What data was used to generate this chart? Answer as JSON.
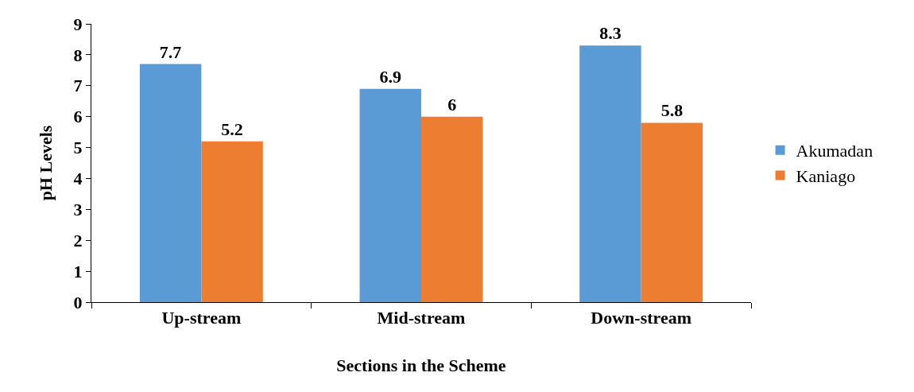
{
  "chart_data": {
    "type": "bar",
    "xlabel": "Sections in the Scheme",
    "ylabel": "pH Levels",
    "categories": [
      "Up-stream",
      "Mid-stream",
      "Down-stream"
    ],
    "series": [
      {
        "name": "Akumadan",
        "color": "#5b9bd5",
        "values": [
          7.7,
          6.9,
          8.3
        ]
      },
      {
        "name": "Kaniago",
        "color": "#ed7d31",
        "values": [
          5.2,
          6,
          5.8
        ]
      }
    ],
    "ylim": [
      0,
      9
    ],
    "yticks": [
      0,
      1,
      2,
      3,
      4,
      5,
      6,
      7,
      8,
      9
    ],
    "grid": false,
    "legend": "right",
    "data_labels": true
  }
}
